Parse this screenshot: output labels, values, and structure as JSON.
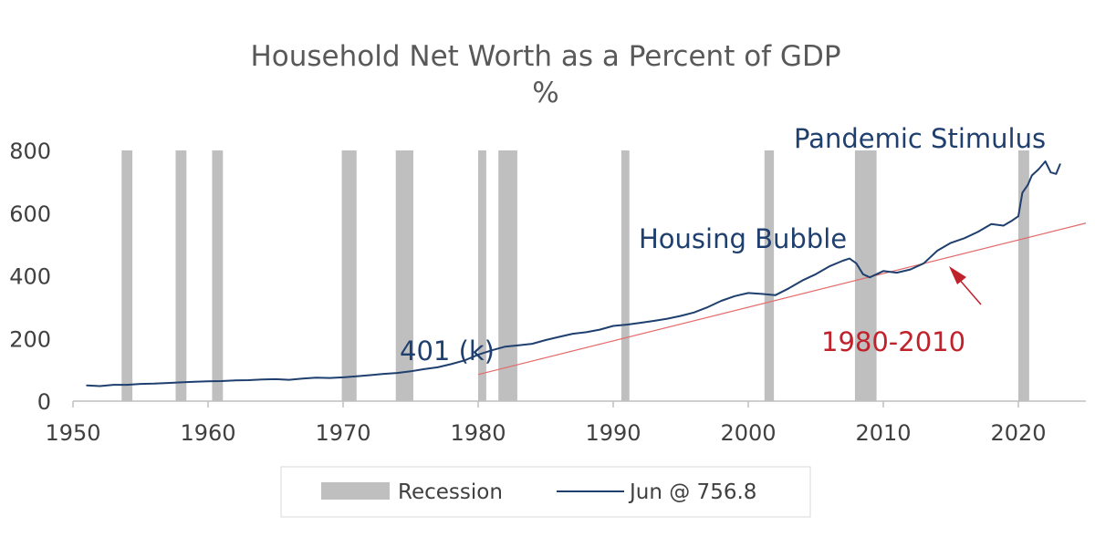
{
  "chart_data": {
    "type": "line",
    "title": "Household Net Worth as a Percent of GDP",
    "subtitle": "%",
    "xlabel": "",
    "ylabel": "",
    "xlim": [
      1950,
      2025
    ],
    "ylim": [
      0,
      800
    ],
    "x_ticks": [
      1950,
      1960,
      1970,
      1980,
      1990,
      2000,
      2010,
      2020
    ],
    "y_ticks": [
      0,
      200,
      400,
      600,
      800
    ],
    "grid": false,
    "legend_position": "bottom",
    "legend": {
      "recession_label": "Recession",
      "line_label": "Jun @ 756.8"
    },
    "recessions": [
      [
        1953.6,
        1954.4
      ],
      [
        1957.6,
        1958.4
      ],
      [
        1960.3,
        1961.1
      ],
      [
        1969.9,
        1971.0
      ],
      [
        1973.9,
        1975.2
      ],
      [
        1980.0,
        1980.6
      ],
      [
        1981.5,
        1982.9
      ],
      [
        1990.6,
        1991.2
      ],
      [
        2001.2,
        2001.9
      ],
      [
        2007.9,
        2009.5
      ],
      [
        2020.0,
        2020.8
      ]
    ],
    "series": [
      {
        "name": "Jun @ 756.8",
        "color": "#1f3f6e",
        "x": [
          1951,
          1952,
          1953,
          1954,
          1955,
          1956,
          1957,
          1958,
          1959,
          1960,
          1961,
          1962,
          1963,
          1964,
          1965,
          1966,
          1967,
          1968,
          1969,
          1970,
          1971,
          1972,
          1973,
          1974,
          1975,
          1976,
          1977,
          1978,
          1979,
          1980,
          1981,
          1982,
          1983,
          1984,
          1985,
          1986,
          1987,
          1988,
          1989,
          1990,
          1991,
          1992,
          1993,
          1994,
          1995,
          1996,
          1997,
          1998,
          1999,
          2000,
          2001,
          2002,
          2003,
          2004,
          2005,
          2006,
          2007,
          2007.5,
          2008,
          2008.5,
          2009,
          2009.5,
          2010,
          2011,
          2012,
          2013,
          2014,
          2015,
          2016,
          2017,
          2018,
          2018.9,
          2019.5,
          2020,
          2020.3,
          2020.7,
          2021,
          2021.5,
          2022,
          2022.4,
          2022.8,
          2023.1
        ],
        "values": [
          50,
          48,
          52,
          52,
          55,
          56,
          58,
          60,
          62,
          63,
          64,
          66,
          67,
          69,
          70,
          68,
          72,
          75,
          74,
          76,
          79,
          83,
          87,
          90,
          95,
          102,
          108,
          118,
          130,
          148,
          162,
          174,
          178,
          183,
          195,
          205,
          215,
          220,
          228,
          240,
          244,
          250,
          256,
          263,
          272,
          283,
          300,
          320,
          335,
          345,
          342,
          338,
          360,
          385,
          405,
          430,
          448,
          455,
          440,
          405,
          395,
          405,
          415,
          410,
          420,
          440,
          480,
          505,
          520,
          540,
          565,
          560,
          575,
          590,
          665,
          690,
          720,
          740,
          765,
          730,
          725,
          757
        ]
      }
    ],
    "trendline": {
      "label": "1980-2010",
      "color": "#e36b6b",
      "x": [
        1980,
        2025
      ],
      "values": [
        85,
        568
      ]
    },
    "annotations": [
      {
        "text": "Pandemic Stimulus",
        "color": "#1f3f6e"
      },
      {
        "text": "Housing Bubble",
        "color": "#1f3f6e"
      },
      {
        "text": "401 (k)",
        "color": "#1f3f6e"
      },
      {
        "text": "1980-2010",
        "color": "#c0222c"
      }
    ]
  }
}
